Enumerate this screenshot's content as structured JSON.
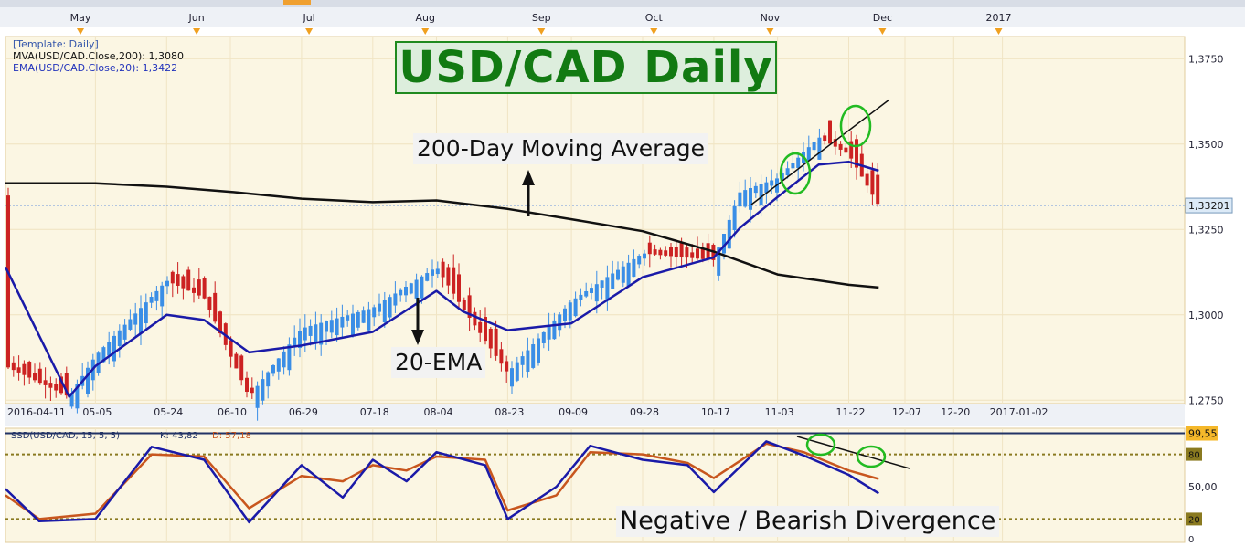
{
  "chart_title": "USD/CAD Daily",
  "legend": {
    "template": "[Template: Daily]",
    "mva": "MVA(USD/CAD.Close,200): 1,3080",
    "ema": "EMA(USD/CAD.Close,20): 1,3422"
  },
  "annotations": {
    "ma200": "200-Day Moving Average",
    "ema20": "20-EMA",
    "divergence": "Negative / Bearish Divergence"
  },
  "osc_legend": {
    "name": "SSD(USD/CAD, 15, 5, 5)",
    "k": "K: 43,82",
    "d": "D: 57,18"
  },
  "price_tag": "1,33201",
  "osc_tag": "99,55",
  "colors": {
    "up": "#3a8ee6",
    "down": "#cc2222",
    "ema": "#1a1aa8",
    "ma200": "#111111",
    "k": "#1a1aa8",
    "d": "#c8561e",
    "circle": "#22bb22",
    "level": "#8a7a20"
  },
  "chart_data": [
    {
      "type": "candlestick",
      "title": "USD/CAD Daily",
      "ylim": [
        1.274,
        1.3815
      ],
      "y_ticks": [
        "1,3750",
        "1,3500",
        "1,3250",
        "1,3000",
        "1,2750"
      ],
      "y_tick_values": [
        1.375,
        1.35,
        1.325,
        1.3,
        1.275
      ],
      "month_labels": [
        "May",
        "Jun",
        "Jul",
        "Aug",
        "Sep",
        "Oct",
        "Nov",
        "Dec",
        "2017"
      ],
      "date_labels": [
        "2016-04-11",
        "05-05",
        "05-24",
        "06-10",
        "06-29",
        "07-18",
        "08-04",
        "08-23",
        "09-09",
        "09-28",
        "10-17",
        "11-03",
        "11-22",
        "12-07",
        "12-20",
        "2017-01-02"
      ],
      "series": [
        {
          "name": "MVA(USD/CAD.Close,200)",
          "x": [
            "2016-04-11",
            "2016-05-05",
            "2016-05-24",
            "2016-06-10",
            "2016-06-29",
            "2016-07-18",
            "2016-08-04",
            "2016-08-23",
            "2016-09-09",
            "2016-09-28",
            "2016-10-17",
            "2016-11-03",
            "2016-11-22",
            "2016-11-30"
          ],
          "values": [
            1.3385,
            1.3385,
            1.3375,
            1.336,
            1.334,
            1.333,
            1.3335,
            1.331,
            1.328,
            1.3245,
            1.3185,
            1.3118,
            1.3088,
            1.308
          ]
        },
        {
          "name": "EMA(USD/CAD.Close,20)",
          "x": [
            "2016-04-11",
            "2016-04-28",
            "2016-05-05",
            "2016-05-24",
            "2016-06-03",
            "2016-06-15",
            "2016-06-29",
            "2016-07-18",
            "2016-08-04",
            "2016-08-11",
            "2016-08-23",
            "2016-09-09",
            "2016-09-28",
            "2016-10-17",
            "2016-10-24",
            "2016-11-03",
            "2016-11-14",
            "2016-11-22",
            "2016-11-30"
          ],
          "values": [
            1.314,
            1.276,
            1.285,
            1.3,
            1.2985,
            1.289,
            1.291,
            1.295,
            1.307,
            1.301,
            1.2955,
            1.2975,
            1.311,
            1.3168,
            1.3255,
            1.3345,
            1.344,
            1.3448,
            1.3422
          ]
        },
        {
          "name": "Close",
          "x": [
            "2016-04-11",
            "2016-04-28",
            "2016-05-05",
            "2016-05-24",
            "2016-06-03",
            "2016-06-15",
            "2016-06-29",
            "2016-07-18",
            "2016-08-04",
            "2016-08-11",
            "2016-08-23",
            "2016-09-09",
            "2016-09-28",
            "2016-10-17",
            "2016-10-24",
            "2016-11-03",
            "2016-11-14",
            "2016-11-22",
            "2016-11-30"
          ],
          "values": [
            1.285,
            1.276,
            1.288,
            1.31,
            1.305,
            1.276,
            1.296,
            1.302,
            1.314,
            1.302,
            1.283,
            1.304,
            1.318,
            1.316,
            1.336,
            1.34,
            1.352,
            1.347,
            1.332
          ]
        }
      ]
    },
    {
      "type": "line",
      "title": "SSD(USD/CAD, 15, 5, 5)",
      "ylim": [
        0,
        100
      ],
      "y_ticks": [
        "99,55",
        "80",
        "50,00",
        "20",
        "0"
      ],
      "y_tick_values": [
        99.55,
        80,
        50,
        20,
        0
      ],
      "series": [
        {
          "name": "K",
          "x": [
            "2016-04-11",
            "2016-04-20",
            "2016-05-05",
            "2016-05-20",
            "2016-06-03",
            "2016-06-15",
            "2016-06-29",
            "2016-07-10",
            "2016-07-18",
            "2016-07-27",
            "2016-08-04",
            "2016-08-17",
            "2016-08-23",
            "2016-09-05",
            "2016-09-14",
            "2016-09-28",
            "2016-10-10",
            "2016-10-17",
            "2016-10-31",
            "2016-11-10",
            "2016-11-22",
            "2016-11-30"
          ],
          "values": [
            48,
            18,
            20,
            87,
            75,
            17,
            70,
            40,
            75,
            55,
            82,
            70,
            20,
            50,
            88,
            75,
            70,
            45,
            92,
            79,
            61,
            43.82
          ]
        },
        {
          "name": "D",
          "x": [
            "2016-04-11",
            "2016-04-20",
            "2016-05-05",
            "2016-05-20",
            "2016-06-03",
            "2016-06-15",
            "2016-06-29",
            "2016-07-10",
            "2016-07-18",
            "2016-07-27",
            "2016-08-04",
            "2016-08-17",
            "2016-08-23",
            "2016-09-05",
            "2016-09-14",
            "2016-09-28",
            "2016-10-10",
            "2016-10-17",
            "2016-10-31",
            "2016-11-10",
            "2016-11-22",
            "2016-11-30"
          ],
          "values": [
            42,
            20,
            25,
            80,
            78,
            30,
            60,
            55,
            70,
            65,
            78,
            75,
            28,
            42,
            82,
            80,
            72,
            58,
            90,
            82,
            65,
            57.18
          ]
        }
      ]
    }
  ]
}
